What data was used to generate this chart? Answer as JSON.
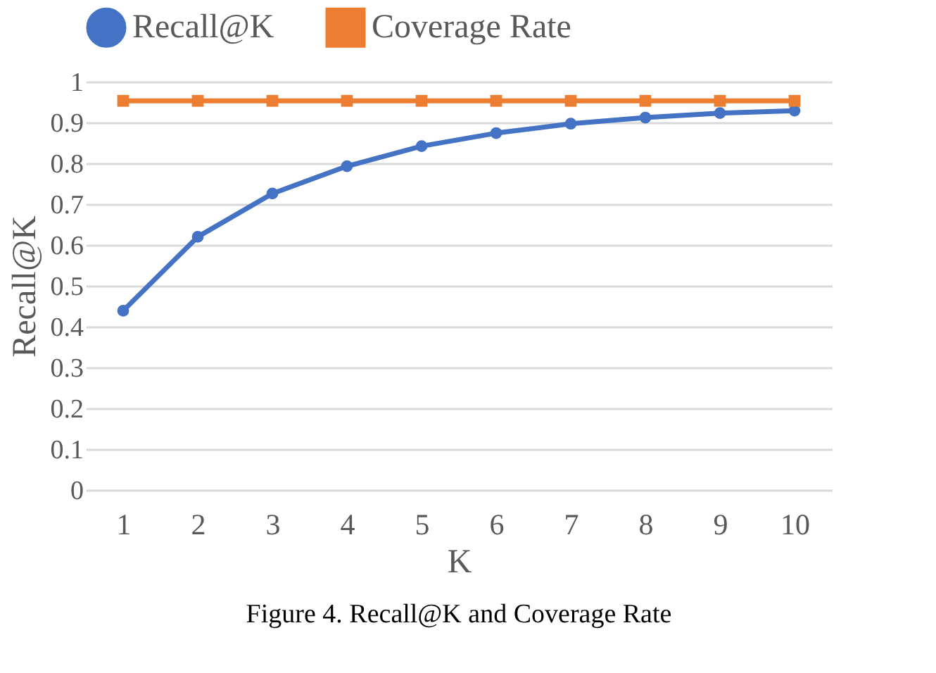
{
  "chart_data": {
    "type": "line",
    "title": "Figure 4.    Recall@K and Coverage Rate",
    "xlabel": "K",
    "ylabel": "Recall@K",
    "categories": [
      "1",
      "2",
      "3",
      "4",
      "5",
      "6",
      "7",
      "8",
      "9",
      "10"
    ],
    "series": [
      {
        "name": "Recall@K",
        "color": "#4472c4",
        "marker": "circle",
        "values": [
          0.439,
          0.62,
          0.726,
          0.793,
          0.842,
          0.874,
          0.897,
          0.912,
          0.923,
          0.929
        ]
      },
      {
        "name": "Coverage Rate",
        "color": "#ed7d31",
        "marker": "square",
        "values": [
          0.953,
          0.953,
          0.953,
          0.953,
          0.953,
          0.953,
          0.953,
          0.953,
          0.953,
          0.953
        ]
      }
    ],
    "ylim": [
      0,
      1
    ],
    "yticks": [
      0,
      0.1,
      0.2,
      0.3,
      0.4,
      0.5,
      0.6,
      0.7,
      0.8,
      0.9,
      1
    ],
    "grid": "y",
    "legend": "top",
    "line_style": "solid"
  }
}
